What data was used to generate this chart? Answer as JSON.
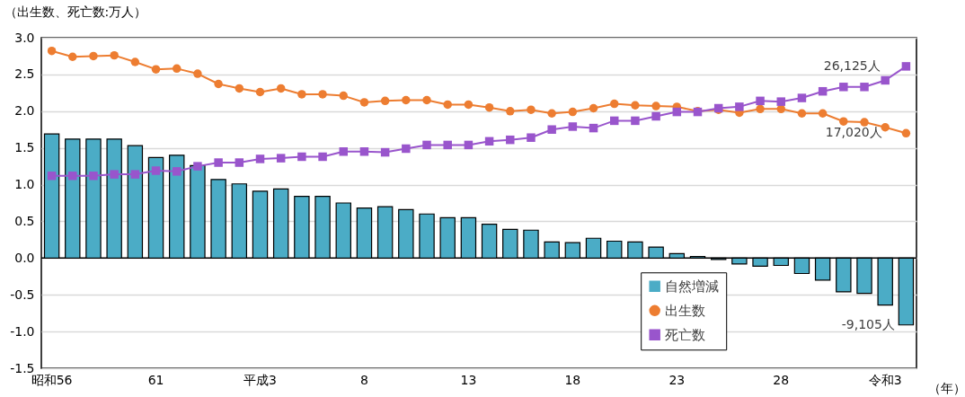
{
  "chart_data": {
    "type": "bar",
    "ylabel": "（出生数、死亡数:万人）",
    "xlabel": "（年）",
    "categories": [
      "昭和56",
      null,
      null,
      null,
      null,
      "61",
      null,
      null,
      null,
      null,
      "平成3",
      null,
      null,
      null,
      null,
      "8",
      null,
      null,
      null,
      null,
      "13",
      null,
      null,
      null,
      null,
      "18",
      null,
      null,
      null,
      null,
      "23",
      null,
      null,
      null,
      null,
      "28",
      null,
      null,
      null,
      null,
      "令和3",
      null
    ],
    "series": [
      {
        "name": "自然増減",
        "color": "#4bacc6",
        "values": [
          1.69,
          1.62,
          1.62,
          1.62,
          1.53,
          1.37,
          1.4,
          1.26,
          1.07,
          1.01,
          0.91,
          0.94,
          0.84,
          0.84,
          0.75,
          0.68,
          0.7,
          0.66,
          0.6,
          0.55,
          0.55,
          0.46,
          0.39,
          0.38,
          0.22,
          0.21,
          0.27,
          0.23,
          0.22,
          0.15,
          0.06,
          0.02,
          -0.02,
          -0.08,
          -0.11,
          -0.1,
          -0.21,
          -0.3,
          -0.46,
          -0.48,
          -0.64,
          -0.91
        ]
      },
      {
        "name": "出生数",
        "type": "line",
        "color": "#ed7d31",
        "marker": "circle",
        "values": [
          2.82,
          2.74,
          2.75,
          2.76,
          2.67,
          2.57,
          2.58,
          2.51,
          2.37,
          2.31,
          2.26,
          2.31,
          2.23,
          2.23,
          2.21,
          2.12,
          2.14,
          2.15,
          2.15,
          2.09,
          2.09,
          2.05,
          2.0,
          2.02,
          1.97,
          1.99,
          2.04,
          2.1,
          2.08,
          2.07,
          2.06,
          2.0,
          2.02,
          1.98,
          2.03,
          2.03,
          1.97,
          1.97,
          1.86,
          1.85,
          1.78,
          1.7
        ]
      },
      {
        "name": "死亡数",
        "type": "line",
        "color": "#9955cc",
        "marker": "square",
        "values": [
          1.12,
          1.12,
          1.12,
          1.14,
          1.14,
          1.19,
          1.18,
          1.25,
          1.3,
          1.3,
          1.35,
          1.36,
          1.38,
          1.38,
          1.45,
          1.45,
          1.44,
          1.49,
          1.54,
          1.54,
          1.54,
          1.59,
          1.61,
          1.64,
          1.75,
          1.79,
          1.77,
          1.87,
          1.87,
          1.93,
          1.99,
          1.99,
          2.04,
          2.06,
          2.14,
          2.13,
          2.18,
          2.27,
          2.33,
          2.33,
          2.42,
          2.61
        ]
      }
    ],
    "ylim": [
      -1.5,
      3
    ],
    "yticks": [
      {
        "value": -1.5,
        "label": "-1.5"
      },
      {
        "value": -1,
        "label": "-1.0"
      },
      {
        "value": -0.5,
        "label": "-0.5"
      },
      {
        "value": 0,
        "label": "0.0"
      },
      {
        "value": 0.5,
        "label": "0.5"
      },
      {
        "value": 1,
        "label": "1.0"
      },
      {
        "value": 1.5,
        "label": "1.5"
      },
      {
        "value": 2,
        "label": "2.0"
      },
      {
        "value": 2.5,
        "label": "2.5"
      },
      {
        "value": 3,
        "label": "3.0"
      }
    ],
    "grid": "y",
    "legend": "bottom right",
    "annotations": [
      "26,125人",
      "17,020人",
      "-9,105人"
    ]
  }
}
